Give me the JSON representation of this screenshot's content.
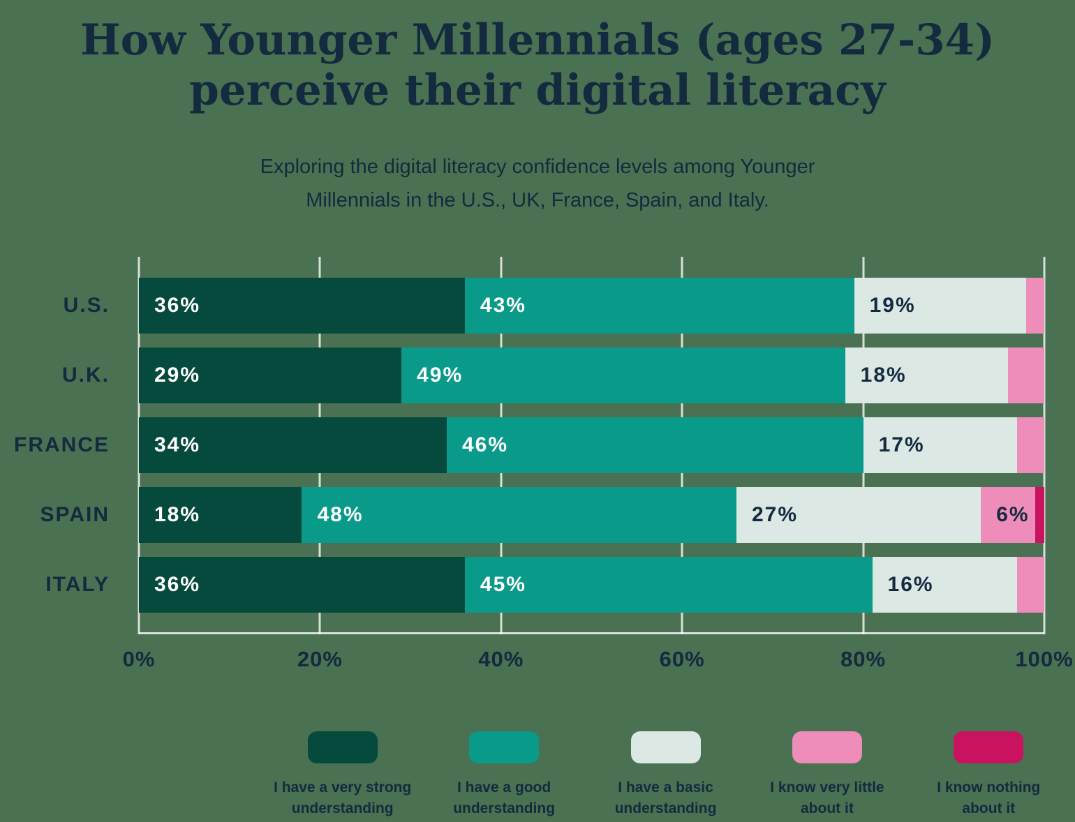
{
  "title": "How Younger Millennials (ages 27-34) perceive their digital literacy",
  "title_lines": {
    "0": "How Younger Millennials (ages 27-34)",
    "1": "perceive their digital literacy"
  },
  "subtitle": "Exploring the digital literacy confidence levels among Younger Millennials in the U.S., UK, France, Spain, and Italy.",
  "subtitle_lines": {
    "0": "Exploring the digital literacy confidence levels among Younger",
    "1": "Millennials in the U.S., UK, France, Spain, and Italy."
  },
  "colors": {
    "background": "#4A7152",
    "text_navy": "#142A3E",
    "gridline": "rgba(255,255,255,0.78)",
    "white_label": "#FFFFFF"
  },
  "chart_data": {
    "type": "bar",
    "stacked": true,
    "orientation": "horizontal",
    "title": "How Younger Millennials (ages 27-34) perceive their digital literacy",
    "subtitle": "Exploring the digital literacy confidence levels among Younger Millennials in the U.S., UK, France, Spain, and Italy.",
    "categories": [
      "U.S.",
      "U.K.",
      "FRANCE",
      "SPAIN",
      "ITALY"
    ],
    "series": [
      {
        "name": "I have a very strong understanding",
        "color": "#06493D",
        "label_style": "on-dark",
        "values": [
          36,
          29,
          34,
          18,
          36
        ]
      },
      {
        "name": "I have a good understanding",
        "color": "#0A9A8A",
        "label_style": "on-dark",
        "values": [
          43,
          49,
          46,
          48,
          45
        ]
      },
      {
        "name": "I have a basic understanding",
        "color": "#DBE8E4",
        "label_style": "on-light",
        "values": [
          19,
          18,
          17,
          27,
          16
        ]
      },
      {
        "name": "I know very little about it",
        "color": "#EF8DBA",
        "label_style": "on-light",
        "values": [
          2,
          4,
          3,
          6,
          3
        ]
      },
      {
        "name": "I know nothing about it",
        "color": "#C9135F",
        "label_style": "on-light",
        "values": [
          0,
          0,
          0,
          1,
          0
        ]
      }
    ],
    "x_ticks": [
      "0%",
      "20%",
      "40%",
      "60%",
      "80%",
      "100%"
    ],
    "xlim": [
      0,
      100
    ],
    "grid": true,
    "value_label_suffix": "%",
    "value_label_min": 6,
    "legend_position": "bottom"
  },
  "legend": {
    "items": [
      {
        "lines": [
          "I have a very strong",
          "understanding"
        ]
      },
      {
        "lines": [
          "I have a good",
          "understanding"
        ]
      },
      {
        "lines": [
          "I have a basic",
          "understanding"
        ]
      },
      {
        "lines": [
          "I know very little",
          "about it"
        ]
      },
      {
        "lines": [
          "I know nothing",
          "about it"
        ]
      }
    ]
  }
}
